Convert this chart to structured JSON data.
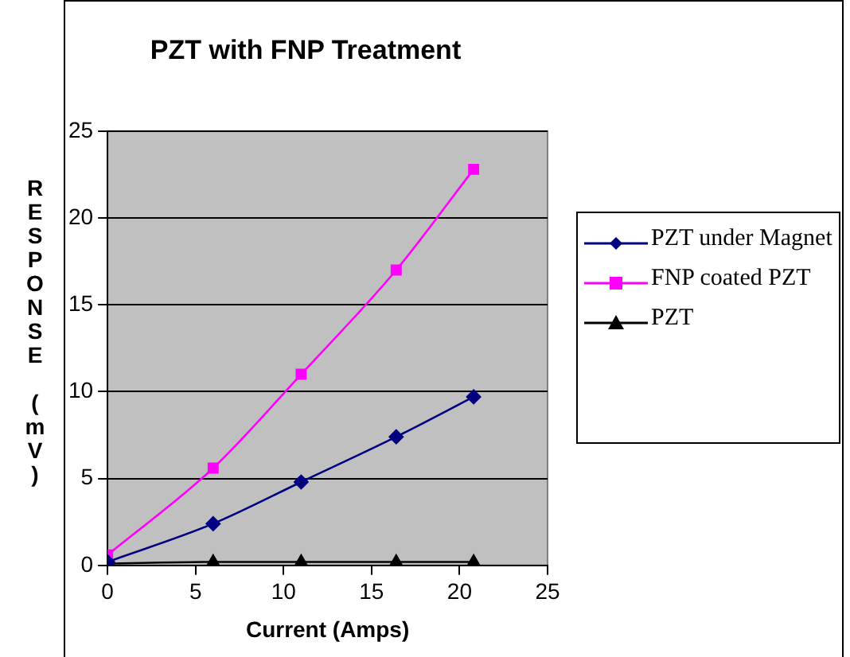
{
  "chart_data": {
    "type": "line",
    "title": "PZT with FNP Treatment",
    "xlabel": "Current (Amps)",
    "ylabel": "RESPONSE (mV)",
    "x": [
      0,
      6,
      11,
      16.4,
      20.8
    ],
    "series": [
      {
        "name": "PZT under Magnet",
        "color": "#000080",
        "marker": "diamond",
        "values": [
          0.2,
          2.4,
          4.8,
          7.4,
          9.7
        ]
      },
      {
        "name": "FNP coated PZT",
        "color": "#ff00ff",
        "marker": "square",
        "values": [
          0.6,
          5.6,
          11,
          17,
          22.8
        ]
      },
      {
        "name": "PZT",
        "color": "#000000",
        "marker": "triangle",
        "values": [
          0.1,
          0.2,
          0.2,
          0.2,
          0.2
        ]
      }
    ],
    "xlim": [
      0,
      25
    ],
    "xticks": [
      0,
      5,
      10,
      15,
      20,
      25
    ],
    "ylim": [
      0,
      25
    ],
    "yticks": [
      0,
      5,
      10,
      15,
      20,
      25
    ],
    "grid": "y",
    "legend": "right"
  }
}
